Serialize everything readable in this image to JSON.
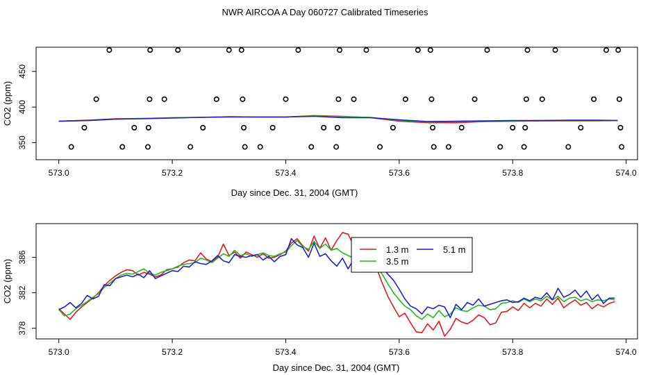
{
  "title": "NWR AIRCOA A  Day 060727  Calibrated Timeseries",
  "chart_data": [
    {
      "type": "scatter",
      "xlabel": "Day since Dec. 31, 2004 (GMT)",
      "ylabel": "CO2 (ppm)",
      "xlim": [
        572.96,
        574.02
      ],
      "ylim": [
        326,
        484
      ],
      "xticks": [
        "573.0",
        "573.2",
        "573.4",
        "573.6",
        "573.8",
        "574.0"
      ],
      "yticks": [
        "350",
        "400",
        "450"
      ],
      "grid": false,
      "legend": "none",
      "points": [
        [
          573.022,
          344
        ],
        [
          573.045,
          371
        ],
        [
          573.066,
          411
        ],
        [
          573.089,
          480
        ],
        [
          573.112,
          344
        ],
        [
          573.133,
          371
        ],
        [
          573.157,
          344
        ],
        [
          573.158,
          371
        ],
        [
          573.16,
          411
        ],
        [
          573.161,
          480
        ],
        [
          573.186,
          411
        ],
        [
          573.21,
          480
        ],
        [
          573.232,
          344
        ],
        [
          573.254,
          371
        ],
        [
          573.278,
          411
        ],
        [
          573.3,
          480
        ],
        [
          573.322,
          480
        ],
        [
          573.324,
          411
        ],
        [
          573.326,
          371
        ],
        [
          573.328,
          344
        ],
        [
          573.355,
          344
        ],
        [
          573.377,
          371
        ],
        [
          573.4,
          411
        ],
        [
          573.422,
          480
        ],
        [
          573.445,
          344
        ],
        [
          573.467,
          371
        ],
        [
          573.489,
          344
        ],
        [
          573.491,
          371
        ],
        [
          573.493,
          411
        ],
        [
          573.495,
          480
        ],
        [
          573.52,
          411
        ],
        [
          573.542,
          480
        ],
        [
          573.566,
          344
        ],
        [
          573.589,
          371
        ],
        [
          573.611,
          411
        ],
        [
          573.633,
          480
        ],
        [
          573.655,
          480
        ],
        [
          573.657,
          411
        ],
        [
          573.659,
          371
        ],
        [
          573.661,
          344
        ],
        [
          573.687,
          344
        ],
        [
          573.71,
          371
        ],
        [
          573.733,
          411
        ],
        [
          573.755,
          480
        ],
        [
          573.778,
          344
        ],
        [
          573.8,
          371
        ],
        [
          573.82,
          344
        ],
        [
          573.822,
          371
        ],
        [
          573.824,
          411
        ],
        [
          573.826,
          480
        ],
        [
          573.852,
          411
        ],
        [
          573.875,
          480
        ],
        [
          573.898,
          344
        ],
        [
          573.92,
          371
        ],
        [
          573.943,
          411
        ],
        [
          573.965,
          480
        ],
        [
          573.986,
          480
        ],
        [
          573.988,
          411
        ],
        [
          573.99,
          371
        ],
        [
          573.992,
          344
        ]
      ],
      "series": [
        {
          "color": "#e41a1c",
          "x": [
            573.0,
            573.05,
            573.1,
            573.15,
            573.2,
            573.25,
            573.3,
            573.35,
            573.4,
            573.45,
            573.5,
            573.55,
            573.6,
            573.65,
            573.7,
            573.75,
            573.8,
            573.85,
            573.9,
            573.95,
            573.985
          ],
          "y": [
            380,
            381.5,
            383.5,
            384,
            385,
            385.5,
            386.5,
            386,
            386,
            388,
            387,
            385,
            380,
            378,
            378,
            379.5,
            380,
            380.5,
            380.5,
            380.5,
            381
          ]
        },
        {
          "color": "#22b822",
          "x": [
            573.0,
            573.05,
            573.1,
            573.15,
            573.2,
            573.25,
            573.3,
            573.35,
            573.4,
            573.45,
            573.5,
            573.55,
            573.6,
            573.65,
            573.7,
            573.75,
            573.8,
            573.85,
            573.9,
            573.95,
            573.985
          ],
          "y": [
            380,
            381,
            383,
            384,
            385,
            385.5,
            386.5,
            386,
            386,
            387.5,
            386.5,
            385.5,
            381,
            379,
            379.5,
            380,
            380.5,
            381,
            381,
            381,
            381
          ]
        },
        {
          "color": "#1f1fd0",
          "x": [
            573.0,
            573.05,
            573.1,
            573.15,
            573.2,
            573.25,
            573.3,
            573.35,
            573.4,
            573.45,
            573.5,
            573.55,
            573.6,
            573.65,
            573.7,
            573.75,
            573.8,
            573.85,
            573.9,
            573.95,
            573.985
          ],
          "y": [
            380,
            381,
            383,
            383.5,
            384.5,
            385.5,
            386,
            386,
            386,
            387,
            385,
            385,
            382,
            379.5,
            380,
            380.5,
            381,
            381,
            381.5,
            381.5,
            381
          ]
        }
      ]
    },
    {
      "type": "line",
      "xlabel": "Day since Dec. 31, 2004 (GMT)",
      "ylabel": "CO2 (ppm)",
      "xlim": [
        572.96,
        574.02
      ],
      "ylim": [
        376.8,
        389.8
      ],
      "xticks": [
        "573.0",
        "573.2",
        "573.4",
        "573.6",
        "573.8",
        "574.0"
      ],
      "yticks": [
        "378",
        "382",
        "386"
      ],
      "grid": false,
      "legend": "top-right",
      "series": [
        {
          "name": "1.3 m",
          "color": "#e41a1c",
          "x": [
            573.0,
            573.01,
            573.02,
            573.03,
            573.04,
            573.05,
            573.06,
            573.07,
            573.08,
            573.09,
            573.1,
            573.11,
            573.12,
            573.13,
            573.14,
            573.15,
            573.16,
            573.17,
            573.18,
            573.19,
            573.2,
            573.21,
            573.22,
            573.23,
            573.24,
            573.25,
            573.26,
            573.27,
            573.28,
            573.29,
            573.3,
            573.31,
            573.32,
            573.33,
            573.34,
            573.35,
            573.36,
            573.37,
            573.38,
            573.39,
            573.4,
            573.41,
            573.42,
            573.43,
            573.44,
            573.45,
            573.46,
            573.47,
            573.48,
            573.49,
            573.5,
            573.51,
            573.52,
            573.53,
            573.54,
            573.55,
            573.56,
            573.57,
            573.58,
            573.59,
            573.6,
            573.61,
            573.62,
            573.63,
            573.64,
            573.65,
            573.66,
            573.67,
            573.68,
            573.69,
            573.7,
            573.71,
            573.72,
            573.73,
            573.74,
            573.75,
            573.76,
            573.77,
            573.78,
            573.79,
            573.8,
            573.81,
            573.82,
            573.83,
            573.84,
            573.85,
            573.86,
            573.87,
            573.88,
            573.89,
            573.9,
            573.91,
            573.92,
            573.93,
            573.94,
            573.95,
            573.96,
            573.97,
            573.98
          ],
          "y": [
            380.2,
            379.6,
            379.0,
            379.8,
            380.4,
            380.9,
            381.4,
            382.0,
            382.8,
            383.4,
            383.9,
            384.3,
            384.6,
            384.5,
            384.0,
            384.3,
            384.1,
            383.8,
            384.0,
            384.6,
            384.7,
            384.9,
            385.4,
            385.7,
            385.6,
            386.5,
            385.8,
            385.5,
            386.0,
            387.5,
            386.2,
            386.6,
            385.9,
            386.6,
            386.3,
            386.0,
            386.4,
            385.9,
            386.0,
            386.3,
            386.7,
            387.6,
            388.1,
            387.3,
            386.7,
            388.4,
            387.0,
            388.2,
            386.8,
            387.9,
            388.8,
            388.6,
            387.3,
            386.6,
            386.1,
            385.5,
            384.8,
            383.1,
            381.6,
            380.4,
            379.3,
            379.7,
            378.6,
            377.6,
            377.5,
            378.5,
            377.8,
            378.8,
            377.1,
            377.9,
            379.1,
            378.7,
            378.5,
            378.9,
            379.5,
            379.2,
            378.4,
            378.6,
            379.8,
            379.9,
            380.4,
            380.0,
            380.8,
            380.3,
            380.8,
            380.5,
            381.3,
            380.7,
            381.4,
            380.3,
            380.8,
            381.2,
            380.6,
            380.9,
            380.2,
            380.7,
            380.4,
            380.8,
            381.0
          ]
        },
        {
          "name": "3.5 m",
          "color": "#22b822",
          "x": [
            573.0,
            573.01,
            573.02,
            573.03,
            573.04,
            573.05,
            573.06,
            573.07,
            573.08,
            573.09,
            573.1,
            573.11,
            573.12,
            573.13,
            573.14,
            573.15,
            573.16,
            573.17,
            573.18,
            573.19,
            573.2,
            573.21,
            573.22,
            573.23,
            573.24,
            573.25,
            573.26,
            573.27,
            573.28,
            573.29,
            573.3,
            573.31,
            573.32,
            573.33,
            573.34,
            573.35,
            573.36,
            573.37,
            573.38,
            573.39,
            573.4,
            573.41,
            573.42,
            573.43,
            573.44,
            573.45,
            573.46,
            573.47,
            573.48,
            573.49,
            573.5,
            573.51,
            573.52,
            573.53,
            573.54,
            573.55,
            573.56,
            573.57,
            573.58,
            573.59,
            573.6,
            573.61,
            573.62,
            573.63,
            573.64,
            573.65,
            573.66,
            573.67,
            573.68,
            573.69,
            573.7,
            573.71,
            573.72,
            573.73,
            573.74,
            573.75,
            573.76,
            573.77,
            573.78,
            573.79,
            573.8,
            573.81,
            573.82,
            573.83,
            573.84,
            573.85,
            573.86,
            573.87,
            573.88,
            573.89,
            573.9,
            573.91,
            573.92,
            573.93,
            573.94,
            573.95,
            573.96,
            573.97,
            573.98
          ],
          "y": [
            380.1,
            379.4,
            379.6,
            380.2,
            380.6,
            381.0,
            381.5,
            381.9,
            382.6,
            383.1,
            383.6,
            384.0,
            384.2,
            384.1,
            384.4,
            384.7,
            384.2,
            384.0,
            384.3,
            384.5,
            384.7,
            385.0,
            385.2,
            385.3,
            385.4,
            385.9,
            385.7,
            385.4,
            385.9,
            386.4,
            386.1,
            386.8,
            386.2,
            386.4,
            386.1,
            386.3,
            386.5,
            386.2,
            386.1,
            386.4,
            386.6,
            387.3,
            387.9,
            387.2,
            386.9,
            387.8,
            387.0,
            387.5,
            386.8,
            387.0,
            386.5,
            386.2,
            385.9,
            386.3,
            385.6,
            385.3,
            384.9,
            384.1,
            383.0,
            382.0,
            381.2,
            380.5,
            380.1,
            379.4,
            379.0,
            379.6,
            379.2,
            380.0,
            379.3,
            379.6,
            380.3,
            380.0,
            379.9,
            380.3,
            380.6,
            380.5,
            380.1,
            380.2,
            380.8,
            380.9,
            381.1,
            380.9,
            381.3,
            381.0,
            381.3,
            381.1,
            381.6,
            381.2,
            381.6,
            381.0,
            381.4,
            381.5,
            381.1,
            381.3,
            381.0,
            381.2,
            381.1,
            381.3,
            381.2
          ]
        },
        {
          "name": "5.1 m",
          "color": "#1f1fd0",
          "x": [
            573.0,
            573.01,
            573.02,
            573.03,
            573.04,
            573.05,
            573.06,
            573.07,
            573.08,
            573.09,
            573.1,
            573.11,
            573.12,
            573.13,
            573.14,
            573.15,
            573.16,
            573.17,
            573.18,
            573.19,
            573.2,
            573.21,
            573.22,
            573.23,
            573.24,
            573.25,
            573.26,
            573.27,
            573.28,
            573.29,
            573.3,
            573.31,
            573.32,
            573.33,
            573.34,
            573.35,
            573.36,
            573.37,
            573.38,
            573.39,
            573.4,
            573.41,
            573.42,
            573.43,
            573.44,
            573.45,
            573.46,
            573.47,
            573.48,
            573.49,
            573.5,
            573.51,
            573.52,
            573.53,
            573.54,
            573.55,
            573.56,
            573.57,
            573.58,
            573.59,
            573.6,
            573.61,
            573.62,
            573.63,
            573.64,
            573.65,
            573.66,
            573.67,
            573.68,
            573.69,
            573.7,
            573.71,
            573.72,
            573.73,
            573.74,
            573.75,
            573.76,
            573.77,
            573.78,
            573.79,
            573.8,
            573.81,
            573.82,
            573.83,
            573.84,
            573.85,
            573.86,
            573.87,
            573.88,
            573.89,
            573.9,
            573.91,
            573.92,
            573.93,
            573.94,
            573.95,
            573.96,
            573.97,
            573.98
          ],
          "y": [
            380.1,
            380.4,
            380.9,
            380.3,
            380.8,
            381.7,
            381.3,
            381.6,
            382.9,
            382.8,
            383.6,
            383.8,
            384.0,
            383.8,
            384.1,
            383.7,
            384.5,
            383.6,
            383.9,
            384.2,
            384.5,
            384.4,
            385.0,
            384.9,
            385.5,
            385.3,
            385.2,
            385.6,
            386.2,
            385.6,
            385.4,
            386.3,
            386.1,
            386.0,
            386.2,
            386.3,
            385.7,
            386.1,
            385.5,
            386.1,
            386.3,
            388.1,
            387.4,
            387.1,
            386.0,
            387.6,
            386.1,
            386.4,
            385.6,
            385.0,
            385.9,
            384.7,
            385.8,
            386.4,
            386.5,
            385.7,
            385.2,
            384.8,
            384.1,
            383.4,
            382.4,
            381.3,
            380.5,
            380.2,
            379.6,
            380.4,
            380.2,
            380.6,
            380.4,
            379.2,
            380.7,
            380.1,
            380.9,
            380.6,
            381.3,
            380.5,
            380.7,
            380.9,
            381.1,
            381.2,
            380.9,
            381.0,
            381.4,
            381.1,
            381.5,
            381.3,
            382.0,
            381.2,
            382.5,
            381.5,
            381.8,
            382.3,
            381.5,
            382.2,
            381.2,
            381.8,
            380.8,
            381.4,
            381.4
          ]
        }
      ]
    }
  ]
}
